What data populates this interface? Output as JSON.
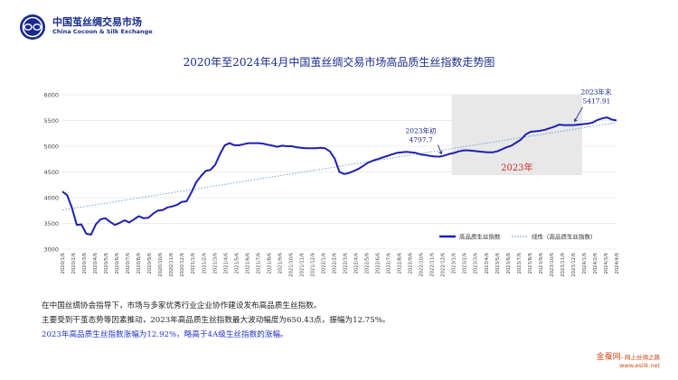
{
  "logo": {
    "name_cn": "中国茧丝绸交易市场",
    "name_en": "China Cocoon & Silk Exchange"
  },
  "title": "2020年至2024年4月中国茧丝绸交易市场高品质生丝指数走势图",
  "chart_data": {
    "type": "line",
    "ylim": [
      3000,
      6000
    ],
    "yticks": [
      "3000",
      "3500",
      "4000",
      "4500",
      "5000",
      "5500",
      "6000"
    ],
    "x_tick_labels": [
      "2020/1/6",
      "2020/2/6",
      "2020/3/6",
      "2020/4/6",
      "2020/5/6",
      "2020/6/6",
      "2020/7/6",
      "2020/8/6",
      "2020/9/6",
      "2020/10/6",
      "2020/11/6",
      "2020/12/6",
      "2021/1/6",
      "2021/2/6",
      "2021/3/6",
      "2021/4/6",
      "2021/5/6",
      "2021/6/6",
      "2021/7/6",
      "2021/8/6",
      "2021/9/6",
      "2021/10/6",
      "2021/11/6",
      "2021/12/6",
      "2022/1/6",
      "2022/2/6",
      "2022/3/6",
      "2022/4/6",
      "2022/5/6",
      "2022/6/6",
      "2022/7/6",
      "2022/8/6",
      "2022/9/6",
      "2022/10/6",
      "2022/11/6",
      "2022/12/6",
      "2023/1/6",
      "2023/2/6",
      "2023/3/6",
      "2023/4/6",
      "2023/5/6",
      "2023/6/6",
      "2023/7/6",
      "2023/8/6",
      "2023/9/6",
      "2023/10/6",
      "2023/11/6",
      "2023/12/6",
      "2024/1/6",
      "2024/2/6",
      "2024/3/6",
      "2024/4/6"
    ],
    "series": [
      {
        "name": "高品质生丝指数",
        "color": "#1f1fb4",
        "values": [
          4120,
          4050,
          3800,
          3470,
          3480,
          3300,
          3280,
          3480,
          3580,
          3600,
          3530,
          3470,
          3510,
          3560,
          3520,
          3580,
          3640,
          3600,
          3610,
          3690,
          3750,
          3760,
          3810,
          3830,
          3860,
          3920,
          3930,
          4100,
          4300,
          4420,
          4520,
          4540,
          4640,
          4850,
          5020,
          5060,
          5020,
          5020,
          5040,
          5060,
          5060,
          5060,
          5050,
          5030,
          5010,
          4990,
          5010,
          5000,
          5000,
          4980,
          4970,
          4960,
          4960,
          4960,
          4970,
          4960,
          4900,
          4760,
          4500,
          4460,
          4480,
          4520,
          4560,
          4620,
          4680,
          4720,
          4750,
          4780,
          4810,
          4840,
          4870,
          4880,
          4890,
          4880,
          4870,
          4840,
          4830,
          4810,
          4800,
          4797.7,
          4820,
          4850,
          4870,
          4900,
          4920,
          4920,
          4910,
          4900,
          4890,
          4880,
          4880,
          4900,
          4940,
          4980,
          5010,
          5070,
          5130,
          5230,
          5280,
          5290,
          5300,
          5320,
          5350,
          5380,
          5420,
          5410,
          5410,
          5410,
          5420,
          5430,
          5440,
          5460,
          5510,
          5540,
          5560,
          5520,
          5500
        ]
      },
      {
        "name": "线性（高品质生丝指数）",
        "color": "#6fa3d8",
        "style": "dotted",
        "values": [
          3760,
          5460
        ]
      }
    ],
    "highlight": {
      "label": "2023年",
      "color": "#e8e8e8",
      "label_color": "#d03030"
    },
    "annotations": [
      {
        "text_line1": "2023年初",
        "text_line2": "4797.7"
      },
      {
        "text_line1": "2023年末",
        "text_line2": "5417.91"
      }
    ],
    "legend": {
      "position": "bottom-right"
    }
  },
  "notes": [
    "在中国丝绸协会指导下，市场与多家优秀行业企业协作建设发布高品质生丝指数。",
    "主要受到干茧态势等因素推动，2023年高品质生丝指数最大波动幅度为650.43点，振幅为12.75%。",
    "2023年高品质生丝指数涨幅为12.92%，略高于4A级生丝指数的涨幅。"
  ],
  "footer": {
    "brand": "金蚕网",
    "slogan": "- 网上丝绸之路",
    "url": "www.esilk.net"
  }
}
